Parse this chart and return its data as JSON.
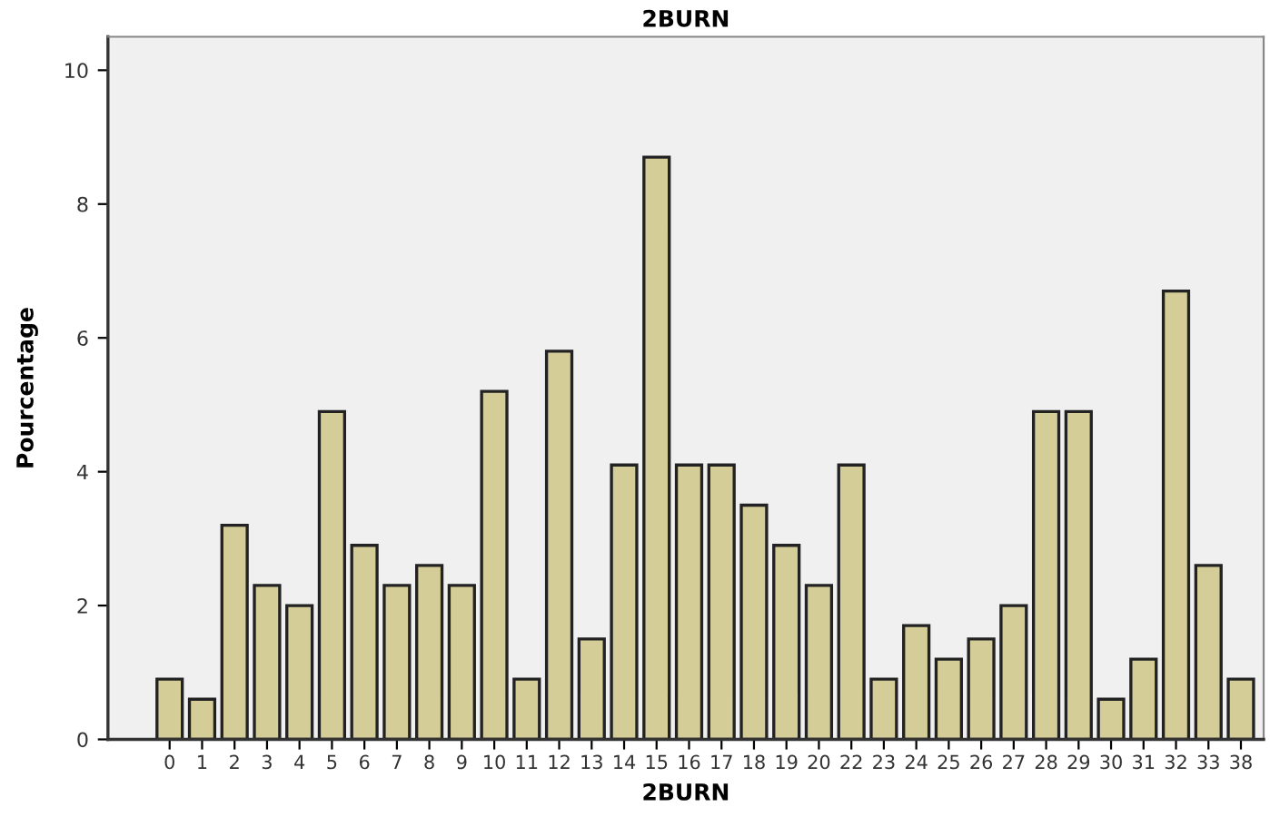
{
  "chart_data": {
    "type": "bar",
    "title": "2BURN",
    "xlabel": "2BURN",
    "ylabel": "Pourcentage",
    "categories": [
      "0",
      "1",
      "2",
      "3",
      "4",
      "5",
      "6",
      "7",
      "8",
      "9",
      "10",
      "11",
      "12",
      "13",
      "14",
      "15",
      "16",
      "17",
      "18",
      "19",
      "20",
      "22",
      "23",
      "24",
      "25",
      "26",
      "27",
      "28",
      "29",
      "30",
      "31",
      "32",
      "33",
      "38"
    ],
    "values": [
      0.9,
      0.6,
      3.2,
      2.3,
      2.0,
      4.9,
      2.9,
      2.3,
      2.6,
      2.3,
      5.2,
      0.9,
      5.8,
      1.5,
      4.1,
      8.7,
      4.1,
      4.1,
      3.5,
      2.9,
      2.3,
      4.1,
      0.9,
      1.7,
      1.2,
      1.5,
      2.0,
      4.9,
      4.9,
      0.6,
      1.2,
      6.7,
      2.6,
      0.9
    ],
    "color": "#d4cd98",
    "ylim": [
      0,
      10.5
    ],
    "yticks": [
      0,
      2,
      4,
      6,
      8,
      10
    ],
    "grid": false
  }
}
